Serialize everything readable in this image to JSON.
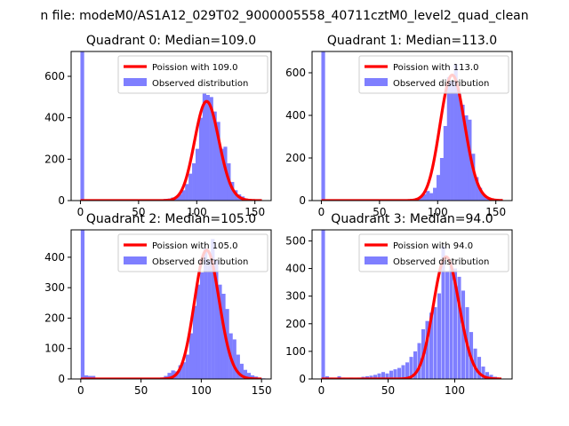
{
  "figure": {
    "suptitle": "n file: modeM0/AS1A12_029T02_9000005558_40711cztM0_level2_quad_clean"
  },
  "colors": {
    "curve": "#ff0000",
    "bars": "#7f7fff",
    "axis": "#000000",
    "background": "#ffffff"
  },
  "chart_data": [
    {
      "type": "bar",
      "title": "Quadrant 0: Median=109.0",
      "xlim": [
        -8,
        164
      ],
      "ylim": [
        0,
        720
      ],
      "xticks": [
        0,
        50,
        100,
        150
      ],
      "yticks": [
        0,
        200,
        400,
        600
      ],
      "median": 109.0,
      "legend": {
        "position": "top-right",
        "curve_label": "Poission with 109.0",
        "bars_label": "Observed distribution"
      },
      "bin_width": 3.2,
      "bins": [
        [
          0,
          720
        ],
        [
          3,
          5
        ],
        [
          6,
          2
        ],
        [
          9,
          2
        ],
        [
          12,
          1
        ],
        [
          15,
          1
        ],
        [
          18,
          1
        ],
        [
          21,
          1
        ],
        [
          24,
          1
        ],
        [
          27,
          1
        ],
        [
          30,
          1
        ],
        [
          33,
          1
        ],
        [
          36,
          1
        ],
        [
          39,
          1
        ],
        [
          42,
          1
        ],
        [
          45,
          1
        ],
        [
          48,
          1
        ],
        [
          51,
          1
        ],
        [
          54,
          1
        ],
        [
          57,
          1
        ],
        [
          60,
          1
        ],
        [
          63,
          1
        ],
        [
          66,
          1
        ],
        [
          69,
          3
        ],
        [
          72,
          8
        ],
        [
          75,
          10
        ],
        [
          78,
          15
        ],
        [
          81,
          20
        ],
        [
          84,
          30
        ],
        [
          87,
          50
        ],
        [
          90,
          80
        ],
        [
          93,
          130
        ],
        [
          96,
          180
        ],
        [
          99,
          250
        ],
        [
          102,
          400
        ],
        [
          105,
          520
        ],
        [
          108,
          510
        ],
        [
          111,
          500
        ],
        [
          114,
          430
        ],
        [
          117,
          380
        ],
        [
          120,
          250
        ],
        [
          123,
          260
        ],
        [
          126,
          180
        ],
        [
          129,
          90
        ],
        [
          132,
          50
        ],
        [
          135,
          30
        ],
        [
          138,
          20
        ],
        [
          141,
          10
        ],
        [
          144,
          5
        ],
        [
          147,
          3
        ],
        [
          150,
          2
        ],
        [
          153,
          1
        ]
      ]
    },
    {
      "type": "bar",
      "title": "Quadrant 1: Median=113.0",
      "xlim": [
        -8,
        164
      ],
      "ylim": [
        0,
        700
      ],
      "xticks": [
        0,
        50,
        100,
        150
      ],
      "yticks": [
        0,
        200,
        400,
        600
      ],
      "median": 113.0,
      "legend": {
        "position": "top-right",
        "curve_label": "Poission with 113.0",
        "bars_label": "Observed distribution"
      },
      "bin_width": 3.2,
      "bins": [
        [
          0,
          700
        ],
        [
          3,
          5
        ],
        [
          6,
          2
        ],
        [
          9,
          2
        ],
        [
          12,
          1
        ],
        [
          15,
          1
        ],
        [
          18,
          1
        ],
        [
          21,
          1
        ],
        [
          24,
          1
        ],
        [
          27,
          1
        ],
        [
          30,
          1
        ],
        [
          33,
          1
        ],
        [
          36,
          1
        ],
        [
          39,
          1
        ],
        [
          42,
          1
        ],
        [
          45,
          1
        ],
        [
          48,
          1
        ],
        [
          51,
          1
        ],
        [
          54,
          1
        ],
        [
          57,
          1
        ],
        [
          60,
          1
        ],
        [
          63,
          1
        ],
        [
          66,
          1
        ],
        [
          69,
          1
        ],
        [
          72,
          2
        ],
        [
          75,
          5
        ],
        [
          78,
          8
        ],
        [
          81,
          12
        ],
        [
          84,
          20
        ],
        [
          87,
          30
        ],
        [
          90,
          45
        ],
        [
          93,
          35
        ],
        [
          96,
          60
        ],
        [
          99,
          120
        ],
        [
          102,
          200
        ],
        [
          105,
          350
        ],
        [
          108,
          580
        ],
        [
          111,
          560
        ],
        [
          114,
          640
        ],
        [
          117,
          500
        ],
        [
          120,
          450
        ],
        [
          123,
          400
        ],
        [
          126,
          380
        ],
        [
          129,
          220
        ],
        [
          132,
          110
        ],
        [
          135,
          60
        ],
        [
          138,
          30
        ],
        [
          141,
          15
        ],
        [
          144,
          8
        ],
        [
          147,
          4
        ],
        [
          150,
          2
        ]
      ]
    },
    {
      "type": "bar",
      "title": "Quadrant 2: Median=105.0",
      "xlim": [
        -8,
        158
      ],
      "ylim": [
        0,
        490
      ],
      "xticks": [
        0,
        50,
        100,
        150
      ],
      "yticks": [
        0,
        100,
        200,
        300,
        400
      ],
      "median": 105.0,
      "legend": {
        "position": "top-right",
        "curve_label": "Poission with 105.0",
        "bars_label": "Observed distribution"
      },
      "bin_width": 3.1,
      "bins": [
        [
          0,
          490
        ],
        [
          3,
          12
        ],
        [
          6,
          10
        ],
        [
          9,
          10
        ],
        [
          12,
          3
        ],
        [
          15,
          3
        ],
        [
          18,
          2
        ],
        [
          21,
          2
        ],
        [
          24,
          2
        ],
        [
          27,
          2
        ],
        [
          30,
          2
        ],
        [
          33,
          2
        ],
        [
          36,
          2
        ],
        [
          39,
          2
        ],
        [
          42,
          2
        ],
        [
          45,
          2
        ],
        [
          48,
          1
        ],
        [
          51,
          1
        ],
        [
          54,
          1
        ],
        [
          57,
          2
        ],
        [
          60,
          2
        ],
        [
          63,
          3
        ],
        [
          66,
          5
        ],
        [
          69,
          10
        ],
        [
          72,
          20
        ],
        [
          75,
          28
        ],
        [
          78,
          25
        ],
        [
          81,
          45
        ],
        [
          84,
          55
        ],
        [
          87,
          80
        ],
        [
          90,
          150
        ],
        [
          93,
          240
        ],
        [
          96,
          310
        ],
        [
          99,
          350
        ],
        [
          102,
          430
        ],
        [
          105,
          390
        ],
        [
          108,
          460
        ],
        [
          111,
          390
        ],
        [
          114,
          310
        ],
        [
          117,
          280
        ],
        [
          120,
          230
        ],
        [
          123,
          150
        ],
        [
          126,
          130
        ],
        [
          129,
          80
        ],
        [
          132,
          50
        ],
        [
          135,
          30
        ],
        [
          138,
          20
        ],
        [
          141,
          12
        ],
        [
          144,
          8
        ],
        [
          147,
          4
        ],
        [
          150,
          2
        ]
      ]
    },
    {
      "type": "bar",
      "title": "Quadrant 3: Median=94.0",
      "xlim": [
        -7,
        143
      ],
      "ylim": [
        0,
        540
      ],
      "xticks": [
        0,
        50,
        100
      ],
      "yticks": [
        0,
        100,
        200,
        300,
        400,
        500
      ],
      "median": 94.0,
      "legend": {
        "position": "top-right",
        "curve_label": "Poission with 94.0",
        "bars_label": "Observed distribution"
      },
      "bin_width": 2.7,
      "bins": [
        [
          0,
          540
        ],
        [
          3,
          10
        ],
        [
          6,
          5
        ],
        [
          9,
          3
        ],
        [
          12,
          10
        ],
        [
          15,
          5
        ],
        [
          18,
          3
        ],
        [
          21,
          5
        ],
        [
          24,
          3
        ],
        [
          27,
          5
        ],
        [
          30,
          8
        ],
        [
          33,
          10
        ],
        [
          36,
          12
        ],
        [
          39,
          15
        ],
        [
          42,
          20
        ],
        [
          45,
          25
        ],
        [
          48,
          20
        ],
        [
          51,
          30
        ],
        [
          54,
          35
        ],
        [
          57,
          40
        ],
        [
          60,
          50
        ],
        [
          63,
          60
        ],
        [
          66,
          80
        ],
        [
          69,
          100
        ],
        [
          72,
          130
        ],
        [
          75,
          180
        ],
        [
          78,
          210
        ],
        [
          81,
          240
        ],
        [
          84,
          260
        ],
        [
          87,
          310
        ],
        [
          90,
          480
        ],
        [
          93,
          390
        ],
        [
          96,
          420
        ],
        [
          99,
          400
        ],
        [
          102,
          370
        ],
        [
          105,
          320
        ],
        [
          108,
          260
        ],
        [
          111,
          170
        ],
        [
          114,
          110
        ],
        [
          117,
          80
        ],
        [
          120,
          45
        ],
        [
          123,
          25
        ],
        [
          126,
          15
        ],
        [
          129,
          8
        ],
        [
          132,
          3
        ]
      ]
    }
  ]
}
